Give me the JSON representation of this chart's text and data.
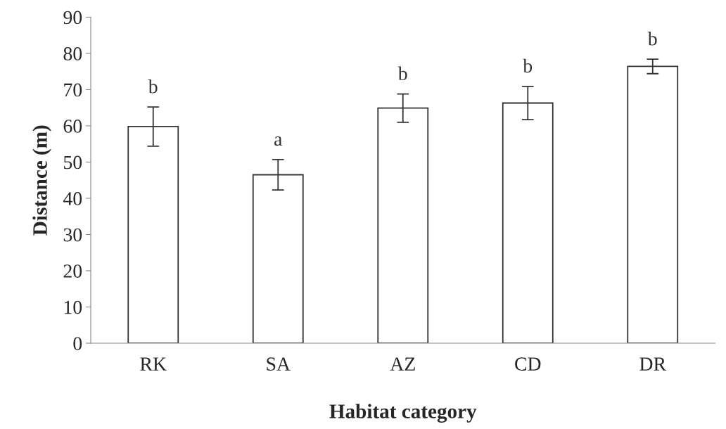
{
  "chart_data": {
    "type": "bar",
    "xlabel": "Habitat category",
    "ylabel": "Distance (m)",
    "categories": [
      "RK",
      "SA",
      "AZ",
      "CD",
      "DR"
    ],
    "values": [
      59.8,
      46.5,
      64.9,
      66.3,
      76.4
    ],
    "errors": [
      5.4,
      4.2,
      3.9,
      4.6,
      2.0
    ],
    "color": "#ffffff",
    "ylim": [
      0,
      90
    ],
    "yticks": [
      0,
      10,
      20,
      30,
      40,
      50,
      60,
      70,
      80,
      90
    ],
    "grid": false,
    "annotations": [
      "b",
      "a",
      "b",
      "b",
      "b"
    ]
  }
}
